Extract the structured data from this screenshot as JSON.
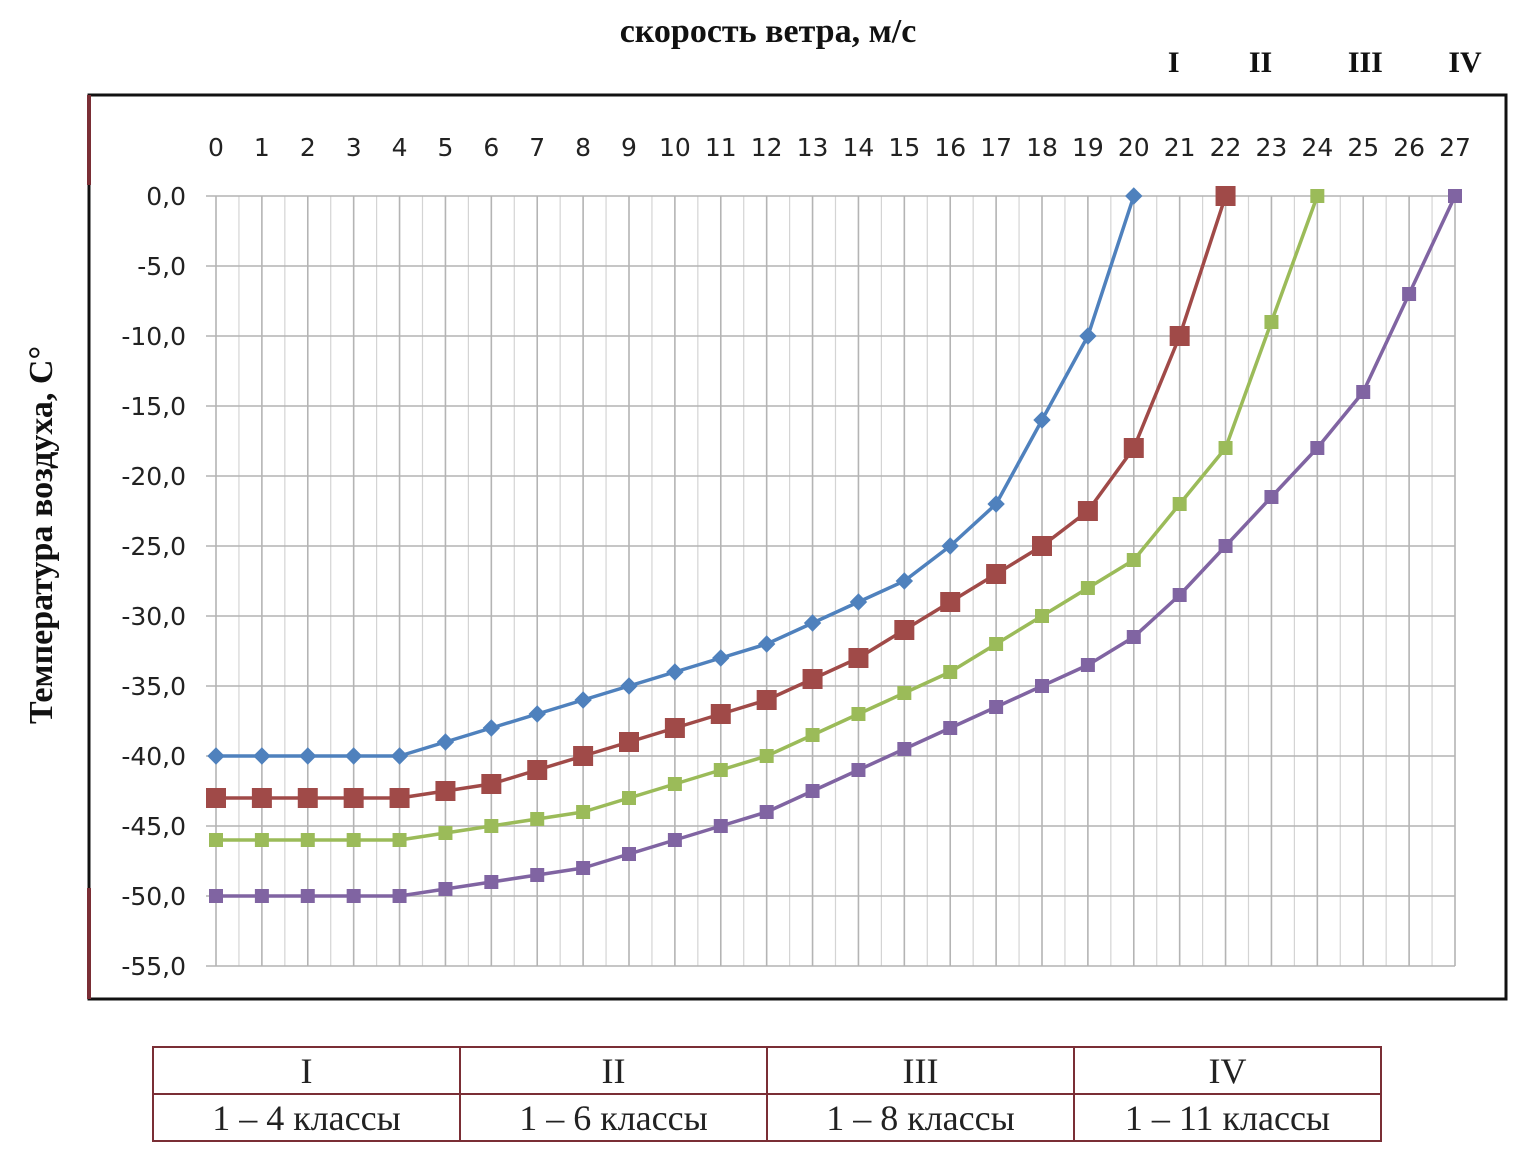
{
  "chart_data": {
    "type": "line",
    "title": "скорость ветра, м/с",
    "xlabel": "",
    "ylabel": "Температура воздуха, С°",
    "x_tick_labels": [
      "0",
      "1",
      "2",
      "3",
      "4",
      "5",
      "6",
      "7",
      "8",
      "9",
      "10",
      "11",
      "12",
      "13",
      "14",
      "15",
      "16",
      "17",
      "18",
      "19",
      "20",
      "21",
      "22",
      "23",
      "24",
      "25",
      "26",
      "27"
    ],
    "y_tick_labels": [
      "0,0",
      "-5,0",
      "-10,0",
      "-15,0",
      "-20,0",
      "-25,0",
      "-30,0",
      "-35,0",
      "-40,0",
      "-45,0",
      "-50,0",
      "-55,0"
    ],
    "xlim": [
      0,
      27
    ],
    "ylim": [
      -55,
      0
    ],
    "grid": true,
    "series_end_labels": [
      "I",
      "II",
      "III",
      "IV"
    ],
    "series": [
      {
        "color": "#4f81bd",
        "marker": "diamond",
        "x": [
          0,
          1,
          2,
          3,
          4,
          5,
          6,
          7,
          8,
          9,
          10,
          11,
          12,
          13,
          14,
          15,
          16,
          17,
          18,
          19,
          20
        ],
        "values": [
          -40,
          -40,
          -40,
          -40,
          -40,
          -39,
          -38,
          -37,
          -36,
          -35,
          -34,
          -33,
          -32,
          -30.5,
          -29,
          -27.5,
          -25,
          -22,
          -16,
          -10,
          0
        ]
      },
      {
        "color": "#a04a48",
        "marker": "square",
        "x": [
          0,
          1,
          2,
          3,
          4,
          5,
          6,
          7,
          8,
          9,
          10,
          11,
          12,
          13,
          14,
          15,
          16,
          17,
          18,
          19,
          20,
          21,
          22
        ],
        "values": [
          -43,
          -43,
          -43,
          -43,
          -43,
          -42.5,
          -42,
          -41,
          -40,
          -39,
          -38,
          -37,
          -36,
          -34.5,
          -33,
          -31,
          -29,
          -27,
          -25,
          -22.5,
          -18,
          -10,
          0
        ]
      },
      {
        "color": "#9bbb59",
        "marker": "square",
        "x": [
          0,
          1,
          2,
          3,
          4,
          5,
          6,
          7,
          8,
          9,
          10,
          11,
          12,
          13,
          14,
          15,
          16,
          17,
          18,
          19,
          20,
          21,
          22,
          23,
          24
        ],
        "values": [
          -46,
          -46,
          -46,
          -46,
          -46,
          -45.5,
          -45,
          -44.5,
          -44,
          -43,
          -42,
          -41,
          -40,
          -38.5,
          -37,
          -35.5,
          -34,
          -32,
          -30,
          -28,
          -26,
          -22,
          -18,
          -9,
          0
        ]
      },
      {
        "color": "#8064a2",
        "marker": "square",
        "x": [
          0,
          1,
          2,
          3,
          4,
          5,
          6,
          7,
          8,
          9,
          10,
          11,
          12,
          13,
          14,
          15,
          16,
          17,
          18,
          19,
          20,
          21,
          22,
          23,
          24,
          25,
          26,
          27
        ],
        "values": [
          -50,
          -50,
          -50,
          -50,
          -50,
          -49.5,
          -49,
          -48.5,
          -48,
          -47,
          -46,
          -45,
          -44,
          -42.5,
          -41,
          -39.5,
          -38,
          -36.5,
          -35,
          -33.5,
          -31.5,
          -28.5,
          -25,
          -21.5,
          -18,
          -14,
          -7,
          0
        ]
      }
    ]
  },
  "legend_table": {
    "headers": [
      "I",
      "II",
      "III",
      "IV"
    ],
    "rows": [
      "1 – 4 классы",
      "1 – 6 классы",
      "1 – 8 классы",
      "1 – 11 классы"
    ]
  }
}
